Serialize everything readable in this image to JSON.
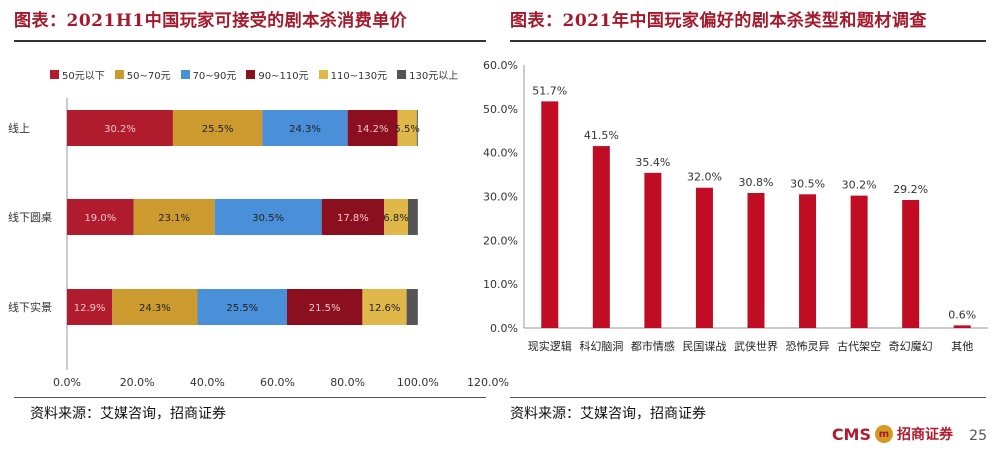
{
  "left": {
    "title": "图表：2021H1中国玩家可接受的剧本杀消费单价",
    "source": "资料来源：艾媒咨询，招商证券",
    "chart_data": {
      "type": "bar",
      "orientation": "horizontal-stacked",
      "categories": [
        "线上",
        "线下圆桌",
        "线下实景"
      ],
      "series": [
        {
          "name": "50元以下",
          "color": "#b01c2e",
          "values": [
            30.2,
            19.0,
            12.9
          ]
        },
        {
          "name": "50~70元",
          "color": "#cc9a2e",
          "values": [
            25.5,
            23.1,
            24.3
          ]
        },
        {
          "name": "70~90元",
          "color": "#4a90d9",
          "values": [
            24.3,
            30.5,
            25.5
          ]
        },
        {
          "name": "90~110元",
          "color": "#8b0f1f",
          "values": [
            14.2,
            17.8,
            21.5
          ]
        },
        {
          "name": "110~130元",
          "color": "#e0b84a",
          "values": [
            5.5,
            6.8,
            12.6
          ]
        },
        {
          "name": "130元以上",
          "color": "#555555",
          "values": [
            0.3,
            2.8,
            3.2
          ]
        }
      ],
      "labels": [
        [
          "30.2%",
          "25.5%",
          "24.3%",
          "14.2%",
          "5.5%"
        ],
        [
          "19.0%",
          "23.1%",
          "30.5%",
          "17.8%",
          "6.8%"
        ],
        [
          "12.9%",
          "24.3%",
          "25.5%",
          "21.5%",
          "12.6%"
        ]
      ],
      "xlim": [
        0,
        120
      ],
      "xticks": [
        "0.0%",
        "20.0%",
        "40.0%",
        "60.0%",
        "80.0%",
        "100.0%",
        "120.0%"
      ],
      "legend": "top"
    }
  },
  "right": {
    "title": "图表：2021年中国玩家偏好的剧本杀类型和题材调查",
    "source": "资料来源：艾媒咨询，招商证券",
    "chart_data": {
      "type": "bar",
      "categories": [
        "现实逻辑",
        "科幻脑洞",
        "都市情感",
        "民国谍战",
        "武侠世界",
        "恐怖灵异",
        "古代架空",
        "奇幻魔幻",
        "其他"
      ],
      "values": [
        51.7,
        41.5,
        35.4,
        32.0,
        30.8,
        30.5,
        30.2,
        29.2,
        0.6
      ],
      "labels": [
        "51.7%",
        "41.5%",
        "35.4%",
        "32.0%",
        "30.8%",
        "30.5%",
        "30.2%",
        "29.2%",
        "0.6%"
      ],
      "color": "#c00d24",
      "ylim": [
        0,
        60
      ],
      "yticks": [
        "0.0%",
        "10.0%",
        "20.0%",
        "30.0%",
        "40.0%",
        "50.0%",
        "60.0%"
      ]
    }
  },
  "footer": {
    "logo_text": "CMS",
    "coin_text": "m",
    "brand": "招商证券",
    "page": "25"
  }
}
